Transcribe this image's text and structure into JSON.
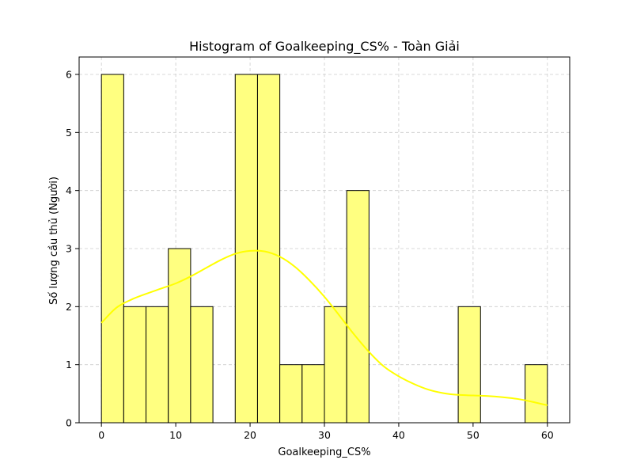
{
  "chart_data": {
    "type": "bar",
    "subtype": "histogram_with_kde",
    "title": "Histogram of Goalkeeping_CS% - Toàn Giải",
    "xlabel": "Goalkeeping_CS%",
    "ylabel": "Số lượng cầu thủ (Người)",
    "xlim": [
      -3,
      63
    ],
    "ylim": [
      0,
      6.3
    ],
    "xticks": [
      0,
      10,
      20,
      30,
      40,
      50,
      60
    ],
    "yticks": [
      0,
      1,
      2,
      3,
      4,
      5,
      6
    ],
    "grid": true,
    "bin_edges": [
      0,
      3,
      6,
      9,
      12,
      15,
      18,
      21,
      24,
      27,
      30,
      33,
      36,
      39,
      42,
      45,
      48,
      51,
      54,
      57,
      60
    ],
    "values": [
      6,
      2,
      2,
      3,
      2,
      0,
      6,
      6,
      1,
      1,
      2,
      4,
      0,
      0,
      0,
      0,
      2,
      0,
      0,
      1
    ],
    "bar_color": "#ffff80",
    "bar_edge_color": "#000000",
    "kde": {
      "x": [
        0,
        2,
        4,
        6,
        8,
        10,
        12,
        14,
        16,
        18,
        20,
        22,
        24,
        26,
        28,
        30,
        32,
        34,
        36,
        38,
        40,
        42,
        44,
        46,
        48,
        50,
        52,
        54,
        56,
        58,
        60
      ],
      "y": [
        1.72,
        1.98,
        2.12,
        2.22,
        2.31,
        2.4,
        2.52,
        2.66,
        2.8,
        2.91,
        2.96,
        2.95,
        2.86,
        2.69,
        2.45,
        2.17,
        1.85,
        1.52,
        1.22,
        0.97,
        0.8,
        0.67,
        0.57,
        0.51,
        0.48,
        0.47,
        0.46,
        0.44,
        0.41,
        0.36,
        0.3
      ],
      "color": "#ffff00"
    }
  }
}
